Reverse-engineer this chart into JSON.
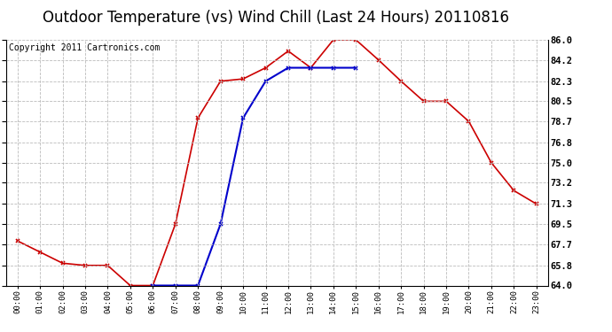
{
  "title": "Outdoor Temperature (vs) Wind Chill (Last 24 Hours) 20110816",
  "copyright": "Copyright 2011 Cartronics.com",
  "hours": [
    "00:00",
    "01:00",
    "02:00",
    "03:00",
    "04:00",
    "05:00",
    "06:00",
    "07:00",
    "08:00",
    "09:00",
    "10:00",
    "11:00",
    "12:00",
    "13:00",
    "14:00",
    "15:00",
    "16:00",
    "17:00",
    "18:00",
    "19:00",
    "20:00",
    "21:00",
    "22:00",
    "23:00"
  ],
  "temp": [
    68.0,
    67.0,
    66.0,
    65.8,
    65.8,
    64.0,
    64.0,
    69.5,
    79.0,
    82.3,
    82.5,
    83.5,
    85.0,
    83.5,
    86.0,
    86.0,
    84.2,
    82.3,
    80.5,
    80.5,
    78.7,
    75.0,
    72.5,
    71.3
  ],
  "windchill": [
    null,
    null,
    null,
    null,
    null,
    null,
    64.0,
    64.0,
    64.0,
    69.5,
    79.0,
    82.3,
    83.5,
    83.5,
    83.5,
    83.5,
    null,
    null,
    null,
    null,
    null,
    null,
    null,
    null
  ],
  "temp_color": "#cc0000",
  "windchill_color": "#0000cc",
  "background_color": "#ffffff",
  "plot_bg_color": "#ffffff",
  "grid_color": "#bbbbbb",
  "ylim_min": 64.0,
  "ylim_max": 86.0,
  "yticks": [
    64.0,
    65.8,
    67.7,
    69.5,
    71.3,
    73.2,
    75.0,
    76.8,
    78.7,
    80.5,
    82.3,
    84.2,
    86.0
  ],
  "title_fontsize": 12,
  "copyright_fontsize": 7
}
